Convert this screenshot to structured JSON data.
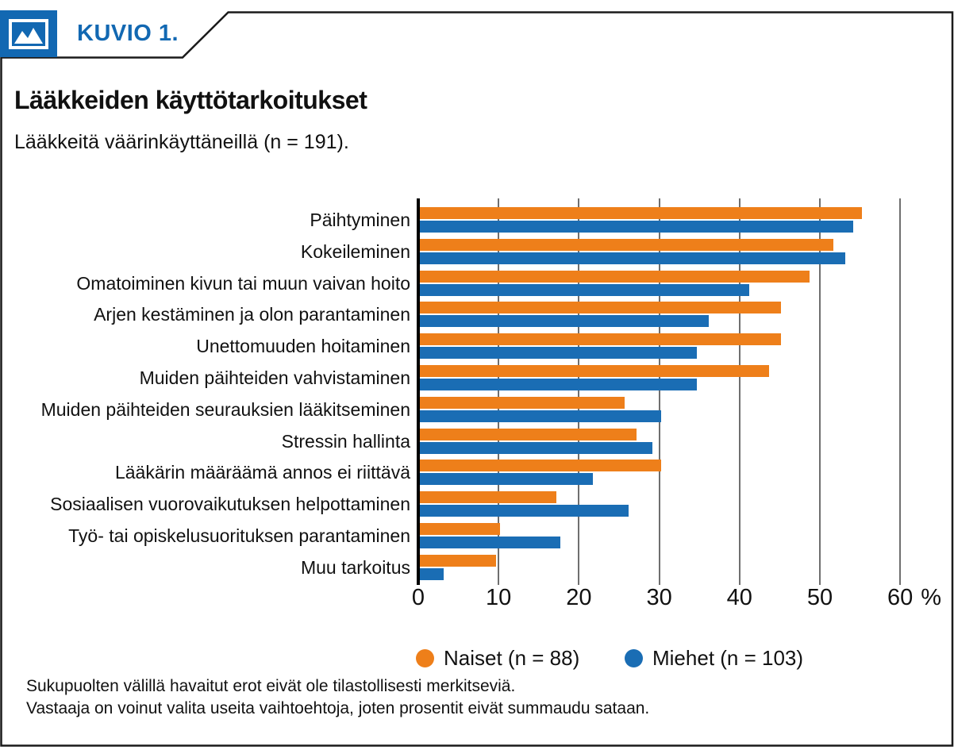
{
  "header": {
    "tag": "KUVIO 1.",
    "title": "Lääkkeiden käyttötarkoitukset",
    "subtitle": "Lääkkeitä väärinkäyttäneillä (n = 191)."
  },
  "chart_data": {
    "type": "bar",
    "orientation": "horizontal",
    "title": "Lääkkeiden käyttötarkoitukset",
    "subtitle": "Lääkkeitä väärinkäyttäneillä (n = 191).",
    "categories": [
      "Päihtyminen",
      "Kokeileminen",
      "Omatoiminen kivun tai muun vaivan hoito",
      "Arjen kestäminen ja olon parantaminen",
      "Unettomuuden hoitaminen",
      "Muiden päihteiden vahvistaminen",
      "Muiden päihteiden seurauksien lääkitseminen",
      "Stressin hallinta",
      "Lääkärin määräämä annos ei riittävä",
      "Sosiaalisen vuorovaikutuksen helpottaminen",
      "Työ- tai opiskelusuorituksen parantaminen",
      "Muu tarkoitus"
    ],
    "series": [
      {
        "name": "Naiset (n = 88)",
        "color": "#EE7F1A",
        "values": [
          55,
          51.5,
          48.5,
          45,
          45,
          43.5,
          25.5,
          27,
          30,
          17,
          10,
          9.5
        ]
      },
      {
        "name": "Miehet (n = 103)",
        "color": "#1A6DB4",
        "values": [
          54,
          53,
          41,
          36,
          34.5,
          34.5,
          30,
          29,
          21.5,
          26,
          17.5,
          3
        ]
      }
    ],
    "x_ticks": [
      0,
      10,
      20,
      30,
      40,
      50,
      60
    ],
    "xlim": [
      0,
      62
    ],
    "xlabel_unit": "%",
    "grid": true,
    "legend_position": "bottom"
  },
  "footnotes": [
    "Sukupuolten välillä havaitut erot eivät ole tilastollisesti merkitseviä.",
    "Vastaaja on voinut valita useita vaihtoehtoja, joten prosentit eivät summaudu sataan."
  ],
  "colors": {
    "brand_blue": "#1268B2",
    "bar_orange": "#EE7F1A",
    "bar_blue": "#1A6DB4",
    "gridline": "#6F6F6F",
    "axis": "#000000",
    "frame": "#1A1A1A"
  },
  "icons": {
    "figure_tag": "image-icon"
  }
}
